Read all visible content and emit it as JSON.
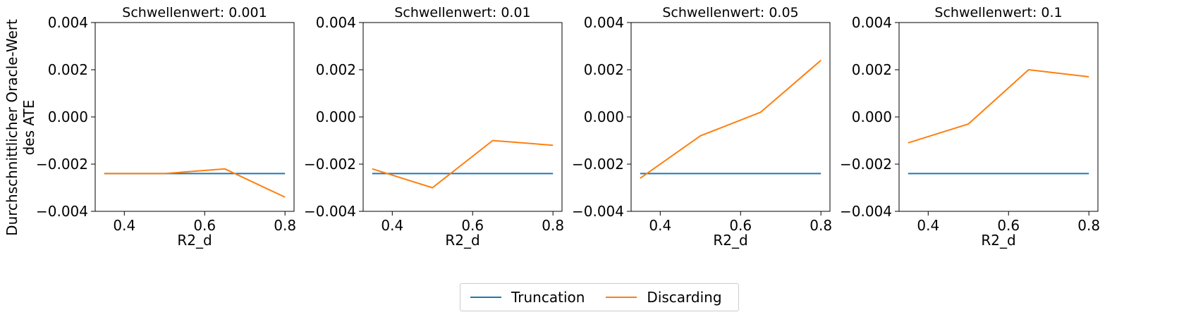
{
  "figure": {
    "ylabel": "Durchschnittlicher Oracle-Wert\ndes ATE",
    "legend": [
      {
        "name": "Truncation",
        "color": "#1f77b4"
      },
      {
        "name": "Discarding",
        "color": "#ff7f0e"
      }
    ],
    "legend_placement": "bottom-center"
  },
  "chart_data": [
    {
      "type": "line",
      "title": "Schwellenwert: 0.001",
      "xlabel": "R2_d",
      "ylabel": "Durchschnittlicher Oracle-Wert des ATE",
      "x": [
        0.35,
        0.5,
        0.65,
        0.8
      ],
      "xticks": [
        "0.4",
        "0.6",
        "0.8"
      ],
      "yticks": [
        "0.004",
        "0.002",
        "0.000",
        "−0.002",
        "−0.004"
      ],
      "xlim": [
        0.3275,
        0.8225
      ],
      "ylim": [
        -0.004,
        0.004
      ],
      "grid": false,
      "series": [
        {
          "name": "Truncation",
          "color": "#1f77b4",
          "values": [
            -0.0024,
            -0.0024,
            -0.0024,
            -0.0024
          ]
        },
        {
          "name": "Discarding",
          "color": "#ff7f0e",
          "values": [
            -0.0024,
            -0.0024,
            -0.0022,
            -0.0034
          ]
        }
      ]
    },
    {
      "type": "line",
      "title": "Schwellenwert: 0.01",
      "xlabel": "R2_d",
      "ylabel": "",
      "x": [
        0.35,
        0.5,
        0.65,
        0.8
      ],
      "xticks": [
        "0.4",
        "0.6",
        "0.8"
      ],
      "yticks": [
        "0.004",
        "0.002",
        "0.000",
        "−0.002",
        "−0.004"
      ],
      "xlim": [
        0.3275,
        0.8225
      ],
      "ylim": [
        -0.004,
        0.004
      ],
      "grid": false,
      "series": [
        {
          "name": "Truncation",
          "color": "#1f77b4",
          "values": [
            -0.0024,
            -0.0024,
            -0.0024,
            -0.0024
          ]
        },
        {
          "name": "Discarding",
          "color": "#ff7f0e",
          "values": [
            -0.0022,
            -0.003,
            -0.001,
            -0.0012
          ]
        }
      ]
    },
    {
      "type": "line",
      "title": "Schwellenwert: 0.05",
      "xlabel": "R2_d",
      "ylabel": "",
      "x": [
        0.35,
        0.5,
        0.65,
        0.8
      ],
      "xticks": [
        "0.4",
        "0.6",
        "0.8"
      ],
      "yticks": [
        "0.004",
        "0.002",
        "0.000",
        "−0.002",
        "−0.004"
      ],
      "xlim": [
        0.3275,
        0.8225
      ],
      "ylim": [
        -0.004,
        0.004
      ],
      "grid": false,
      "series": [
        {
          "name": "Truncation",
          "color": "#1f77b4",
          "values": [
            -0.0024,
            -0.0024,
            -0.0024,
            -0.0024
          ]
        },
        {
          "name": "Discarding",
          "color": "#ff7f0e",
          "values": [
            -0.0026,
            -0.0008,
            0.0002,
            0.0024
          ]
        }
      ]
    },
    {
      "type": "line",
      "title": "Schwellenwert: 0.1",
      "xlabel": "R2_d",
      "ylabel": "",
      "x": [
        0.35,
        0.5,
        0.65,
        0.8
      ],
      "xticks": [
        "0.4",
        "0.6",
        "0.8"
      ],
      "yticks": [
        "0.004",
        "0.002",
        "0.000",
        "−0.002",
        "−0.004"
      ],
      "xlim": [
        0.3275,
        0.8225
      ],
      "ylim": [
        -0.004,
        0.004
      ],
      "grid": false,
      "series": [
        {
          "name": "Truncation",
          "color": "#1f77b4",
          "values": [
            -0.0024,
            -0.0024,
            -0.0024,
            -0.0024
          ]
        },
        {
          "name": "Discarding",
          "color": "#ff7f0e",
          "values": [
            -0.0011,
            -0.0003,
            0.002,
            0.0017
          ]
        }
      ]
    }
  ]
}
